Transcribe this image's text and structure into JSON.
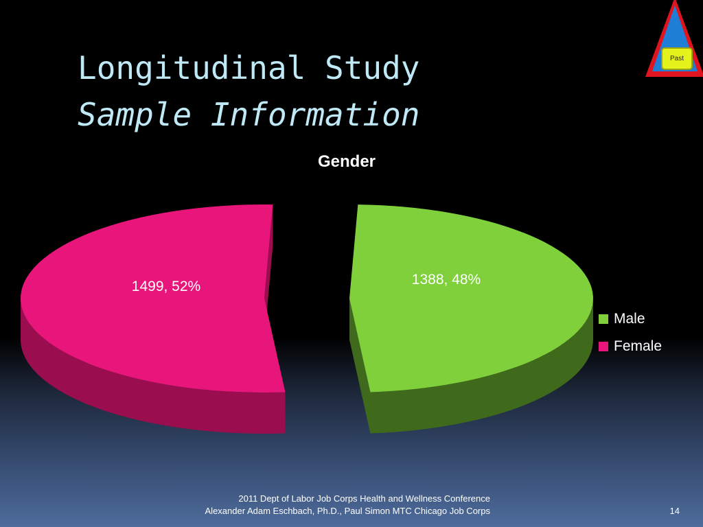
{
  "slide": {
    "title": "Longitudinal Study",
    "subtitle": "Sample Information",
    "footer_line1": "2011 Dept of Labor Job Corps Health and Wellness Conference",
    "footer_line2": "Alexander Adam Eschbach, Ph.D., Paul Simon MTC Chicago Job Corps",
    "page_number": "14"
  },
  "nav": {
    "past_label": "Past",
    "icon": "triangle-icon",
    "colors": {
      "fill": "#1f7fd6",
      "border": "#e0141e",
      "label_bg": "#e6f21c"
    }
  },
  "chart_data": {
    "type": "pie",
    "title": "Gender",
    "style": "3D exploded pie",
    "legend_position": "right",
    "slices": [
      {
        "name": "Male",
        "value": 1388,
        "percent": 48,
        "label": "1388, 48%",
        "color": "#7fd03a",
        "side_color": "#3f6a1c"
      },
      {
        "name": "Female",
        "value": 1499,
        "percent": 52,
        "label": "1499, 52%",
        "color": "#e8157a",
        "side_color": "#9a0d4f"
      }
    ]
  }
}
